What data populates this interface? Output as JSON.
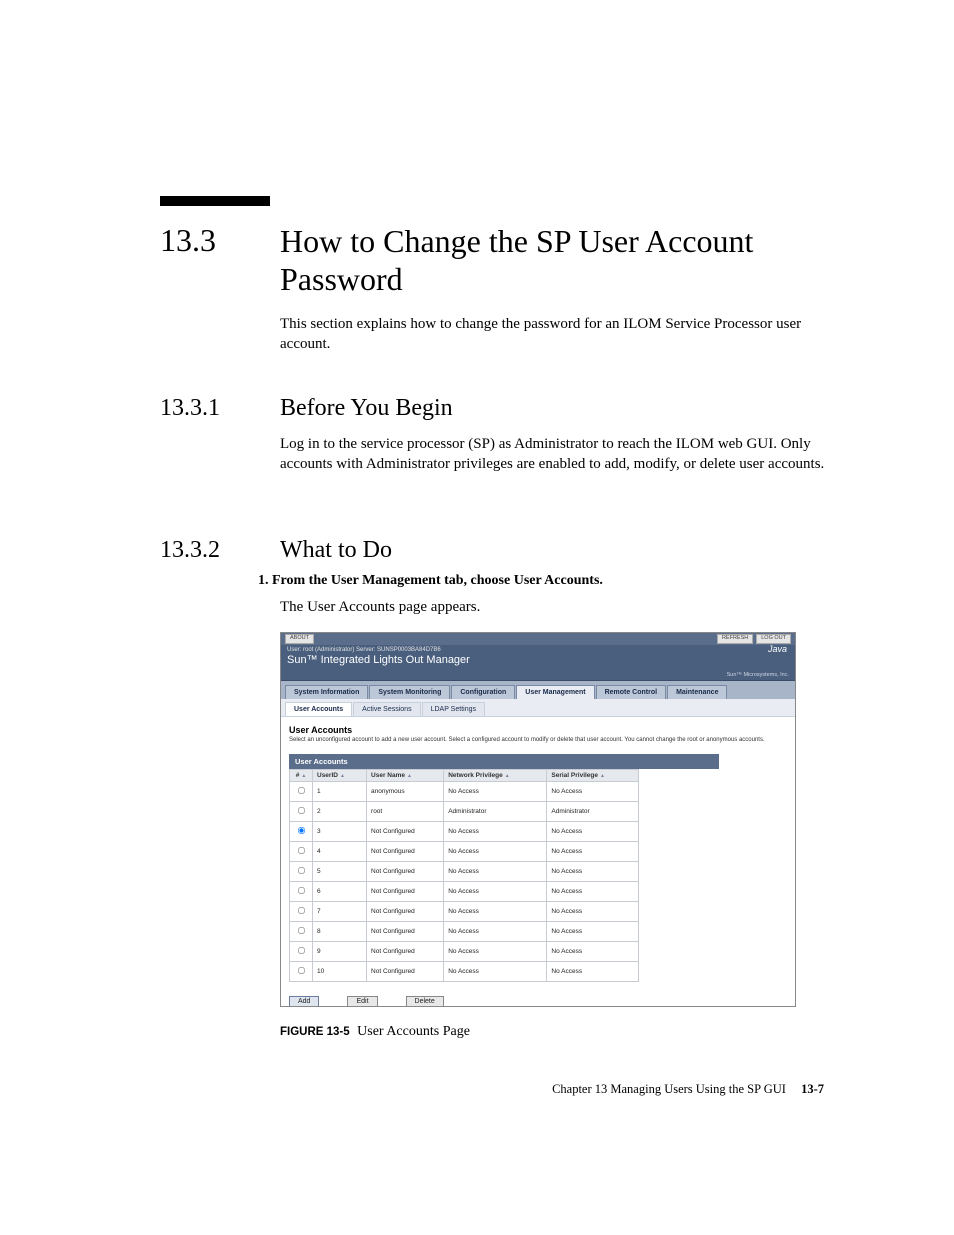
{
  "section": {
    "number": "13.3",
    "title": "How to Change the SP User Account Password",
    "intro": "This section explains how to change the password for an ILOM Service Processor user account."
  },
  "sub1": {
    "number": "13.3.1",
    "title": "Before You Begin",
    "para": "Log in to the service processor (SP) as Administrator to reach the ILOM web GUI. Only accounts with Administrator privileges are enabled to add, modify, or delete user accounts."
  },
  "sub2": {
    "number": "13.3.2",
    "title": "What to Do",
    "step1": "1. From the User Management tab, choose User Accounts.",
    "step1_follow": "The User Accounts page appears."
  },
  "figure": {
    "topbar": {
      "about": "ABOUT",
      "refresh": "REFRESH",
      "logout": "LOG OUT"
    },
    "userline": "User: root (Administrator)   Server: SUNSP0003BA84D7B6",
    "title": "Sun™ Integrated Lights Out Manager",
    "java": "Java",
    "sunline": "Sun™ Microsystems, Inc.",
    "tabs": {
      "t0": "System Information",
      "t1": "System Monitoring",
      "t2": "Configuration",
      "t3": "User Management",
      "t4": "Remote Control",
      "t5": "Maintenance"
    },
    "subtabs": {
      "s0": "User Accounts",
      "s1": "Active Sessions",
      "s2": "LDAP Settings"
    },
    "heading": "User Accounts",
    "desc": "Select an unconfigured account to add a new user account. Select a configured account to modify or delete that user account. You cannot change the root or anonymous accounts.",
    "panel_title": "User Accounts",
    "columns": {
      "sel": "#",
      "id": "UserID",
      "name": "User Name",
      "net": "Network Privilege",
      "ser": "Serial Privilege"
    },
    "rows": [
      {
        "sel": false,
        "id": "1",
        "name": "anonymous",
        "net": "No Access",
        "ser": "No Access"
      },
      {
        "sel": false,
        "id": "2",
        "name": "root",
        "net": "Administrator",
        "ser": "Administrator"
      },
      {
        "sel": true,
        "id": "3",
        "name": "Not Configured",
        "net": "No Access",
        "ser": "No Access"
      },
      {
        "sel": false,
        "id": "4",
        "name": "Not Configured",
        "net": "No Access",
        "ser": "No Access"
      },
      {
        "sel": false,
        "id": "5",
        "name": "Not Configured",
        "net": "No Access",
        "ser": "No Access"
      },
      {
        "sel": false,
        "id": "6",
        "name": "Not Configured",
        "net": "No Access",
        "ser": "No Access"
      },
      {
        "sel": false,
        "id": "7",
        "name": "Not Configured",
        "net": "No Access",
        "ser": "No Access"
      },
      {
        "sel": false,
        "id": "8",
        "name": "Not Configured",
        "net": "No Access",
        "ser": "No Access"
      },
      {
        "sel": false,
        "id": "9",
        "name": "Not Configured",
        "net": "No Access",
        "ser": "No Access"
      },
      {
        "sel": false,
        "id": "10",
        "name": "Not Configured",
        "net": "No Access",
        "ser": "No Access"
      }
    ],
    "buttons": {
      "add": "Add",
      "edit": "Edit",
      "delete": "Delete"
    }
  },
  "caption": {
    "label": "FIGURE 13-5",
    "text": "User Accounts Page"
  },
  "footer": {
    "chapter": "Chapter 13    Managing Users Using the SP GUI",
    "page": "13-7"
  },
  "style": {
    "page_bg": "#ffffff",
    "text_color": "#000000",
    "figure_header_bg": "#4a5f7e",
    "panel_head_bg": "#5a6d8a"
  }
}
